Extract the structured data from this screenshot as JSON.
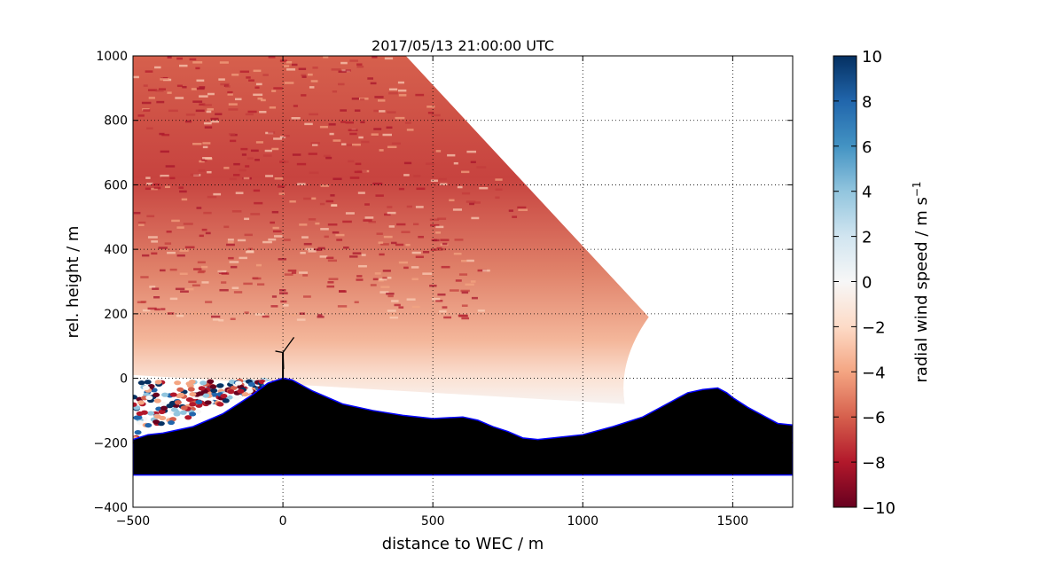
{
  "chart_data": {
    "type": "heatmap",
    "title": "2017/05/13 21:00:00 UTC",
    "xlabel": "distance to WEC / m",
    "ylabel": "rel. height / m",
    "xlim": [
      -500,
      1700
    ],
    "ylim": [
      -400,
      1000
    ],
    "x_ticks": [
      "−500",
      "0",
      "500",
      "1000",
      "1500"
    ],
    "x_tick_values": [
      -500,
      0,
      500,
      1000,
      1500
    ],
    "y_ticks": [
      "−400",
      "−200",
      "0",
      "200",
      "400",
      "600",
      "800",
      "1000"
    ],
    "y_tick_values": [
      -400,
      -200,
      0,
      200,
      400,
      600,
      800,
      1000
    ],
    "grid": true,
    "colorbar": {
      "label_main": "radial wind speed / m s",
      "label_exponent": "−1",
      "range": [
        -10,
        10
      ],
      "ticks": [
        "−10",
        "−8",
        "−6",
        "−4",
        "−2",
        "0",
        "2",
        "4",
        "6",
        "8",
        "10"
      ],
      "tick_values": [
        -10,
        -8,
        -6,
        -4,
        -2,
        0,
        2,
        4,
        6,
        8,
        10
      ],
      "colormap": "RdBu",
      "color_stops": [
        "#67001f",
        "#b2182b",
        "#d6604d",
        "#f4a582",
        "#fddbc7",
        "#f7f7f7",
        "#d1e5f0",
        "#92c5de",
        "#4393c3",
        "#2166ac",
        "#053061"
      ]
    },
    "scan_sector": {
      "description_values": "radial wind speed mostly between -9 and -3 m/s above terrain",
      "lidar_origin": [
        -500,
        10
      ],
      "max_range_point_top": [
        410,
        1000
      ],
      "max_range_point_right": [
        1220,
        190
      ],
      "lower_edge_end": [
        1140,
        -80
      ]
    },
    "terrain": {
      "color": "#000000",
      "edge_color": "#0000ff",
      "base": -300,
      "x": [
        -500,
        -450,
        -400,
        -300,
        -200,
        -100,
        -50,
        0,
        30,
        100,
        200,
        300,
        400,
        500,
        600,
        650,
        700,
        750,
        800,
        850,
        900,
        1000,
        1100,
        1200,
        1250,
        1300,
        1350,
        1400,
        1450,
        1480,
        1500,
        1550,
        1600,
        1650,
        1700
      ],
      "y": [
        -190,
        -175,
        -170,
        -150,
        -110,
        -50,
        -15,
        0,
        -5,
        -40,
        -80,
        -100,
        -115,
        -125,
        -120,
        -130,
        -150,
        -165,
        -185,
        -190,
        -185,
        -175,
        -150,
        -120,
        -95,
        -70,
        -45,
        -35,
        -30,
        -45,
        -60,
        -90,
        -115,
        -140,
        -145
      ]
    },
    "turbine": {
      "x": 0,
      "hub_height": 80,
      "rotor_radius": 45,
      "color": "#000000"
    }
  }
}
